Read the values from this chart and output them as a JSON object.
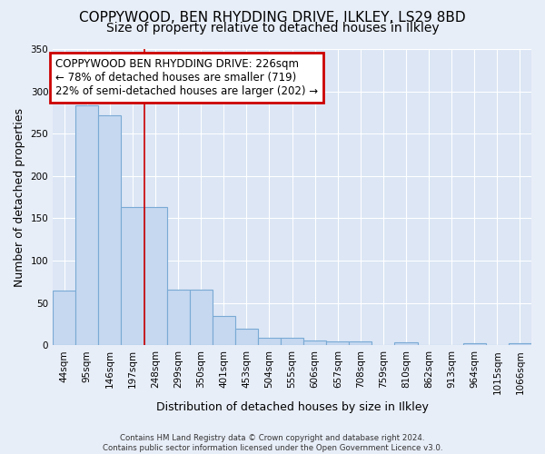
{
  "title1": "COPPYWOOD, BEN RHYDDING DRIVE, ILKLEY, LS29 8BD",
  "title2": "Size of property relative to detached houses in Ilkley",
  "xlabel": "Distribution of detached houses by size in Ilkley",
  "ylabel": "Number of detached properties",
  "footnote": "Contains HM Land Registry data © Crown copyright and database right 2024.\nContains public sector information licensed under the Open Government Licence v3.0.",
  "bin_labels": [
    "44sqm",
    "95sqm",
    "146sqm",
    "197sqm",
    "248sqm",
    "299sqm",
    "350sqm",
    "401sqm",
    "453sqm",
    "504sqm",
    "555sqm",
    "606sqm",
    "657sqm",
    "708sqm",
    "759sqm",
    "810sqm",
    "862sqm",
    "913sqm",
    "964sqm",
    "1015sqm",
    "1066sqm"
  ],
  "bar_values": [
    65,
    283,
    272,
    163,
    163,
    66,
    66,
    35,
    20,
    9,
    9,
    6,
    5,
    4,
    0,
    3,
    0,
    0,
    2,
    0,
    2
  ],
  "bar_color": "#c5d8f0",
  "bar_edge_color": "#7aaad4",
  "vline_x": 3.5,
  "vline_color": "#cc0000",
  "annotation_text": "COPPYWOOD BEN RHYDDING DRIVE: 226sqm\n← 78% of detached houses are smaller (719)\n22% of semi-detached houses are larger (202) →",
  "annotation_box_color": "#ffffff",
  "annotation_box_edge": "#cc0000",
  "ylim": [
    0,
    350
  ],
  "yticks": [
    0,
    50,
    100,
    150,
    200,
    250,
    300,
    350
  ],
  "background_color": "#e8eef8",
  "plot_bg_color": "#dce6f5",
  "grid_color": "#ffffff",
  "title1_fontsize": 11,
  "title2_fontsize": 10,
  "xlabel_fontsize": 9,
  "ylabel_fontsize": 9,
  "tick_fontsize": 7.5,
  "annot_fontsize": 8.5
}
